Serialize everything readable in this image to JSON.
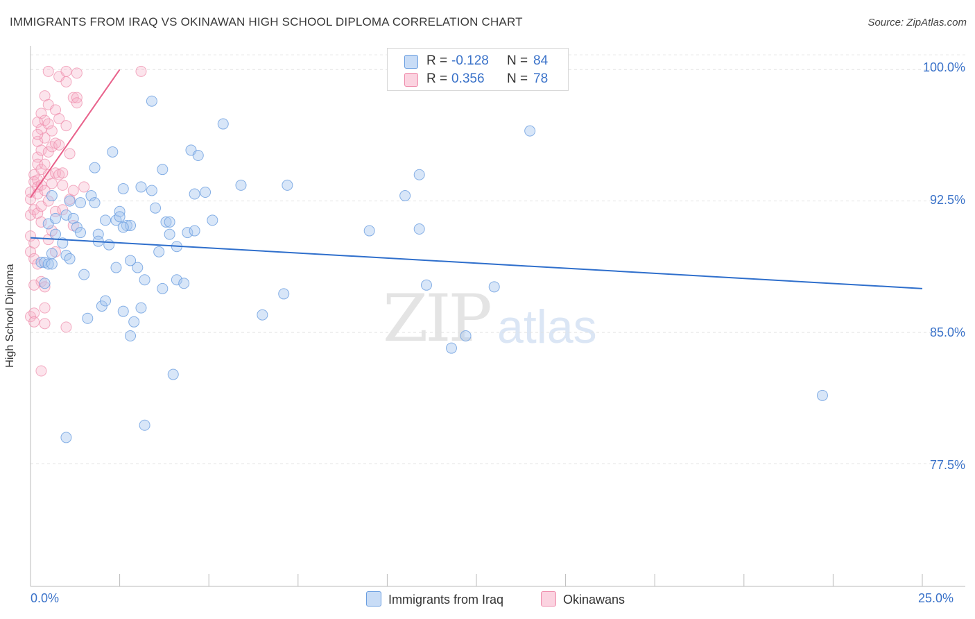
{
  "title": "IMMIGRANTS FROM IRAQ VS OKINAWAN HIGH SCHOOL DIPLOMA CORRELATION CHART",
  "source": "Source: ZipAtlas.com",
  "watermark": {
    "zip": "ZIP",
    "atlas": "atlas"
  },
  "legend_top": {
    "rows": [
      {
        "r_label": "R =",
        "r_value": "-0.128",
        "n_label": "N =",
        "n_value": "84",
        "color": "#a9c8f0"
      },
      {
        "r_label": "R =",
        "r_value": "0.356",
        "n_label": "N =",
        "n_value": "78",
        "color": "#f5b3c8"
      }
    ]
  },
  "legend_bottom": {
    "series1": "Immigrants from Iraq",
    "series2": "Okinawans"
  },
  "axis": {
    "x_min_label": "0.0%",
    "x_max_label": "25.0%",
    "y_label": "High School Diploma",
    "y_ticks": [
      "100.0%",
      "92.5%",
      "85.0%",
      "77.5%"
    ]
  },
  "chart_data": {
    "type": "scatter",
    "title": "IMMIGRANTS FROM IRAQ VS OKINAWAN HIGH SCHOOL DIPLOMA CORRELATION CHART",
    "xlabel": "",
    "ylabel": "High School Diploma",
    "xlim": [
      0,
      25
    ],
    "ylim": [
      70.5,
      101.2
    ],
    "y_tick_values": [
      100.0,
      92.5,
      85.0,
      77.5
    ],
    "colors": {
      "iraq": "#a9c8f0",
      "iraq_stroke": "#6a9ee0",
      "iraq_line": "#2f6fcc",
      "okinawa": "#f5b3c8",
      "okinawa_stroke": "#ee8aaa",
      "okinawa_line": "#e8608a"
    },
    "series": [
      {
        "name": "Immigrants from Iraq",
        "r": -0.128,
        "n": 84,
        "trend": {
          "x": [
            0,
            25
          ],
          "y": [
            90.4,
            87.5
          ]
        },
        "points": [
          [
            0.3,
            89.0
          ],
          [
            0.4,
            89.0
          ],
          [
            0.5,
            88.9
          ],
          [
            0.6,
            92.8
          ],
          [
            0.5,
            91.2
          ],
          [
            0.7,
            91.5
          ],
          [
            0.7,
            90.6
          ],
          [
            0.9,
            90.1
          ],
          [
            0.6,
            89.5
          ],
          [
            0.6,
            88.9
          ],
          [
            1.0,
            89.4
          ],
          [
            1.1,
            89.2
          ],
          [
            1.0,
            91.7
          ],
          [
            1.1,
            92.5
          ],
          [
            1.2,
            91.5
          ],
          [
            1.3,
            91.0
          ],
          [
            1.4,
            90.7
          ],
          [
            1.4,
            92.4
          ],
          [
            1.5,
            88.3
          ],
          [
            1.6,
            85.8
          ],
          [
            1.7,
            92.8
          ],
          [
            1.8,
            94.4
          ],
          [
            1.9,
            90.6
          ],
          [
            1.9,
            90.2
          ],
          [
            2.0,
            86.5
          ],
          [
            2.1,
            86.8
          ],
          [
            2.1,
            91.4
          ],
          [
            2.2,
            90.0
          ],
          [
            2.3,
            95.3
          ],
          [
            2.4,
            88.7
          ],
          [
            2.4,
            91.4
          ],
          [
            2.5,
            91.9
          ],
          [
            2.5,
            91.6
          ],
          [
            2.6,
            86.2
          ],
          [
            2.6,
            93.2
          ],
          [
            2.7,
            91.1
          ],
          [
            2.8,
            89.1
          ],
          [
            2.8,
            91.1
          ],
          [
            2.8,
            84.8
          ],
          [
            2.9,
            85.6
          ],
          [
            3.0,
            88.7
          ],
          [
            3.1,
            86.4
          ],
          [
            3.1,
            93.3
          ],
          [
            3.2,
            88.0
          ],
          [
            3.2,
            79.7
          ],
          [
            3.4,
            93.1
          ],
          [
            3.4,
            98.2
          ],
          [
            3.5,
            92.1
          ],
          [
            3.6,
            89.6
          ],
          [
            3.7,
            94.3
          ],
          [
            3.7,
            87.5
          ],
          [
            3.8,
            91.3
          ],
          [
            3.9,
            91.3
          ],
          [
            3.9,
            90.6
          ],
          [
            4.0,
            82.6
          ],
          [
            4.1,
            88.0
          ],
          [
            4.1,
            89.9
          ],
          [
            4.3,
            87.8
          ],
          [
            4.4,
            90.7
          ],
          [
            4.5,
            95.4
          ],
          [
            4.6,
            90.8
          ],
          [
            4.6,
            92.9
          ],
          [
            4.7,
            95.1
          ],
          [
            4.9,
            93.0
          ],
          [
            5.1,
            91.4
          ],
          [
            5.4,
            96.9
          ],
          [
            5.9,
            93.4
          ],
          [
            6.5,
            86.0
          ],
          [
            7.1,
            87.2
          ],
          [
            7.2,
            93.4
          ],
          [
            9.5,
            90.8
          ],
          [
            10.5,
            92.8
          ],
          [
            10.9,
            94.0
          ],
          [
            10.9,
            90.9
          ],
          [
            11.1,
            87.7
          ],
          [
            11.8,
            84.1
          ],
          [
            12.2,
            84.8
          ],
          [
            13.0,
            87.6
          ],
          [
            14.0,
            96.5
          ],
          [
            22.2,
            81.4
          ],
          [
            1.0,
            79.0
          ],
          [
            1.8,
            92.4
          ],
          [
            2.6,
            91.0
          ],
          [
            0.4,
            87.8
          ]
        ]
      },
      {
        "name": "Okinawans",
        "r": 0.356,
        "n": 78,
        "trend": {
          "x": [
            0,
            2.5
          ],
          "y": [
            92.7,
            100.0
          ]
        },
        "points": [
          [
            0.0,
            93.0
          ],
          [
            0.0,
            92.6
          ],
          [
            0.0,
            91.7
          ],
          [
            0.0,
            90.5
          ],
          [
            0.0,
            89.6
          ],
          [
            0.0,
            85.9
          ],
          [
            0.1,
            94.0
          ],
          [
            0.1,
            93.6
          ],
          [
            0.1,
            92.0
          ],
          [
            0.1,
            90.1
          ],
          [
            0.1,
            89.2
          ],
          [
            0.1,
            86.1
          ],
          [
            0.2,
            97.0
          ],
          [
            0.2,
            95.9
          ],
          [
            0.2,
            95.0
          ],
          [
            0.2,
            94.6
          ],
          [
            0.2,
            93.7
          ],
          [
            0.2,
            93.3
          ],
          [
            0.2,
            92.9
          ],
          [
            0.2,
            91.8
          ],
          [
            0.2,
            88.9
          ],
          [
            0.3,
            97.5
          ],
          [
            0.3,
            96.6
          ],
          [
            0.3,
            95.4
          ],
          [
            0.3,
            94.3
          ],
          [
            0.3,
            93.4
          ],
          [
            0.3,
            92.2
          ],
          [
            0.3,
            87.9
          ],
          [
            0.3,
            82.8
          ],
          [
            0.4,
            98.5
          ],
          [
            0.4,
            97.1
          ],
          [
            0.4,
            96.1
          ],
          [
            0.4,
            94.6
          ],
          [
            0.4,
            93.1
          ],
          [
            0.4,
            86.4
          ],
          [
            0.4,
            87.6
          ],
          [
            0.5,
            99.9
          ],
          [
            0.5,
            98.0
          ],
          [
            0.5,
            96.9
          ],
          [
            0.5,
            95.3
          ],
          [
            0.5,
            94.0
          ],
          [
            0.5,
            92.5
          ],
          [
            0.5,
            90.3
          ],
          [
            0.6,
            96.5
          ],
          [
            0.6,
            95.6
          ],
          [
            0.6,
            93.5
          ],
          [
            0.7,
            97.7
          ],
          [
            0.7,
            95.8
          ],
          [
            0.7,
            94.1
          ],
          [
            0.7,
            91.9
          ],
          [
            0.8,
            99.6
          ],
          [
            0.8,
            97.2
          ],
          [
            0.8,
            95.7
          ],
          [
            0.8,
            94.0
          ],
          [
            0.9,
            93.4
          ],
          [
            0.9,
            92.0
          ],
          [
            1.0,
            99.9
          ],
          [
            1.0,
            99.3
          ],
          [
            1.0,
            96.8
          ],
          [
            1.0,
            85.3
          ],
          [
            1.1,
            92.6
          ],
          [
            1.2,
            98.4
          ],
          [
            1.2,
            93.1
          ],
          [
            1.2,
            91.1
          ],
          [
            1.3,
            99.8
          ],
          [
            1.3,
            98.4
          ],
          [
            1.3,
            98.1
          ],
          [
            1.5,
            93.3
          ],
          [
            3.1,
            99.9
          ],
          [
            0.1,
            87.7
          ],
          [
            0.2,
            96.3
          ],
          [
            0.3,
            91.3
          ],
          [
            0.6,
            90.8
          ],
          [
            0.7,
            89.6
          ],
          [
            0.9,
            94.1
          ],
          [
            1.1,
            95.2
          ],
          [
            0.4,
            85.5
          ],
          [
            0.1,
            85.6
          ]
        ]
      }
    ]
  }
}
